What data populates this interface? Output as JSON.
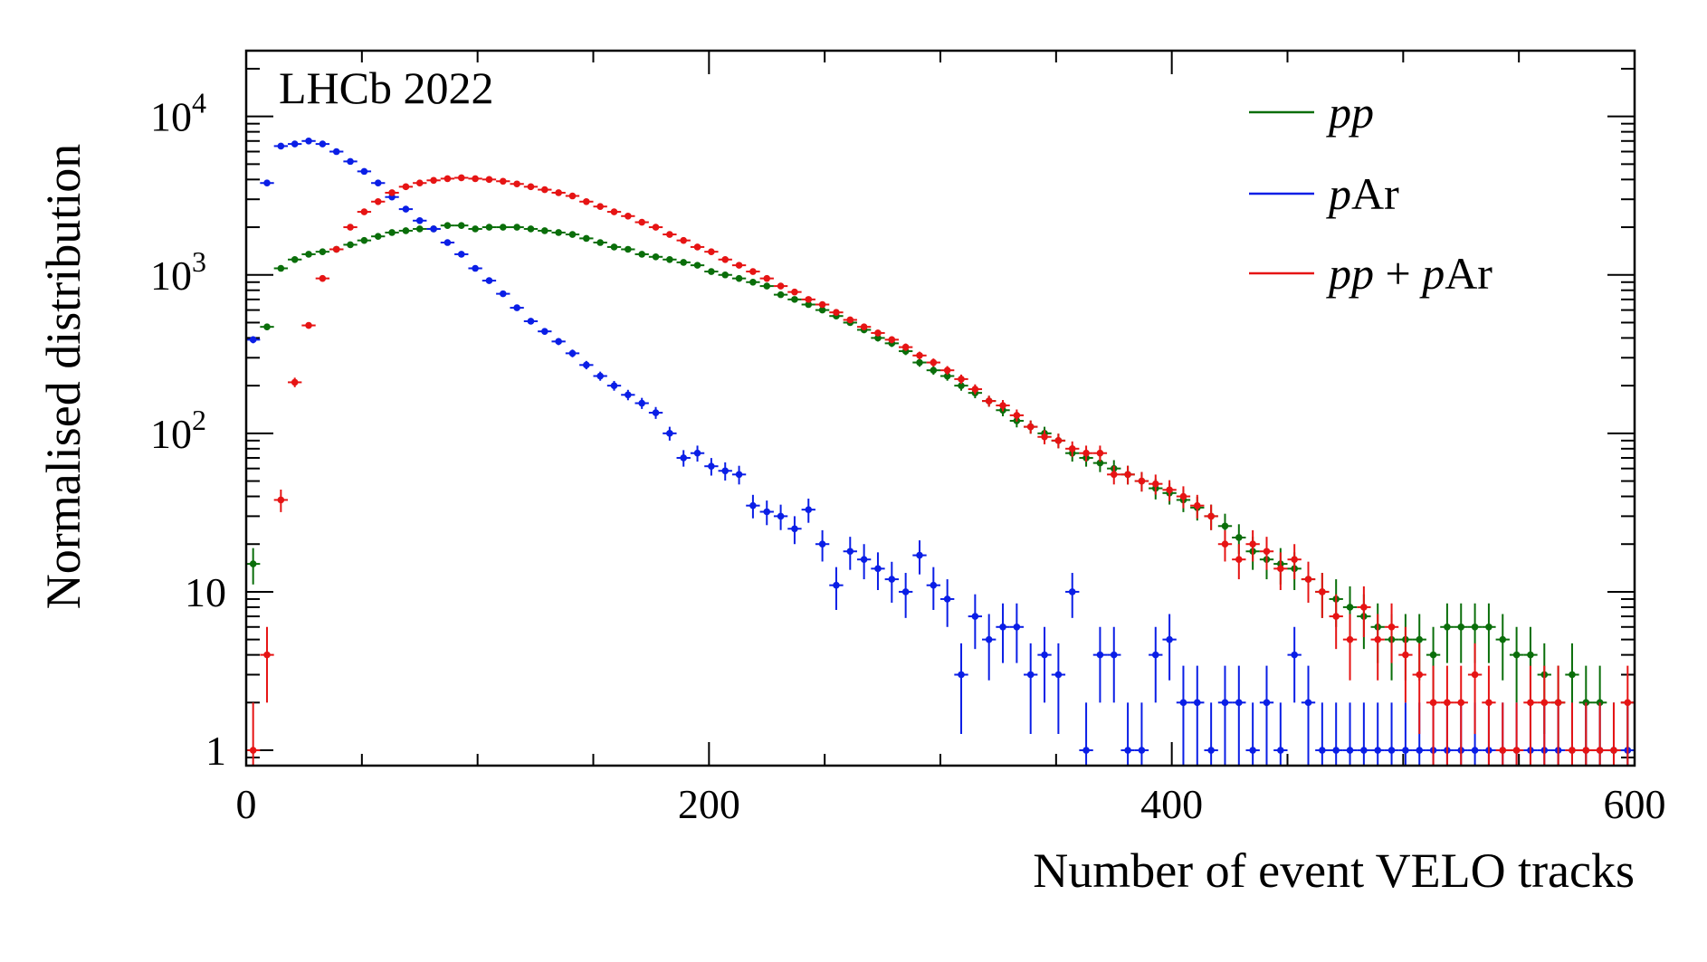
{
  "chart_data": {
    "type": "scatter",
    "title": "",
    "annotation": "LHCb 2022",
    "xlabel": "Number of event VELO tracks",
    "ylabel": "Normalised distribution",
    "xlim": [
      0,
      600
    ],
    "ylim": [
      0.8,
      26000
    ],
    "yscale": "log",
    "bin_width": 6,
    "x_ticks": [
      {
        "value": 0,
        "label": "0"
      },
      {
        "value": 200,
        "label": "200"
      },
      {
        "value": 400,
        "label": "400"
      },
      {
        "value": 600,
        "label": "600"
      }
    ],
    "y_ticks": [
      {
        "value": 1,
        "label": "1",
        "exp": ""
      },
      {
        "value": 10,
        "label": "10",
        "exp": ""
      },
      {
        "value": 100,
        "label": "10",
        "exp": "2"
      },
      {
        "value": 1000,
        "label": "10",
        "exp": "3"
      },
      {
        "value": 10000,
        "label": "10",
        "exp": "4"
      }
    ],
    "legend_position": "top-right",
    "series": [
      {
        "name": "pp",
        "legend": [
          {
            "text": "pp",
            "italic": true
          }
        ],
        "color": "#0a6e0a",
        "x": [
          3,
          9,
          15,
          21,
          27,
          33,
          39,
          45,
          51,
          57,
          63,
          69,
          75,
          81,
          87,
          93,
          99,
          105,
          111,
          117,
          123,
          129,
          135,
          141,
          147,
          153,
          159,
          165,
          171,
          177,
          183,
          189,
          195,
          201,
          207,
          213,
          219,
          225,
          231,
          237,
          243,
          249,
          255,
          261,
          267,
          273,
          279,
          285,
          291,
          297,
          303,
          309,
          315,
          321,
          327,
          333,
          339,
          345,
          351,
          357,
          363,
          369,
          375,
          381,
          387,
          393,
          399,
          405,
          411,
          417,
          423,
          429,
          435,
          441,
          447,
          453,
          459,
          465,
          471,
          477,
          483,
          489,
          495,
          501,
          507,
          513,
          519,
          525,
          531,
          537,
          543,
          549,
          555,
          561,
          567,
          573,
          579,
          585,
          591,
          597
        ],
        "y": [
          15,
          470,
          1100,
          1250,
          1350,
          1400,
          1450,
          1550,
          1650,
          1750,
          1850,
          1900,
          1950,
          1950,
          2050,
          2050,
          1950,
          2000,
          2000,
          2000,
          1950,
          1900,
          1850,
          1800,
          1700,
          1600,
          1500,
          1450,
          1350,
          1300,
          1250,
          1200,
          1150,
          1050,
          1000,
          950,
          900,
          850,
          750,
          700,
          650,
          600,
          550,
          500,
          450,
          400,
          370,
          330,
          280,
          250,
          230,
          200,
          180,
          160,
          140,
          120,
          110,
          100,
          90,
          75,
          70,
          65,
          60,
          55,
          50,
          45,
          42,
          38,
          34,
          30,
          26,
          22,
          18,
          16,
          15,
          14,
          12,
          10,
          9,
          8,
          7,
          6,
          5,
          5,
          5,
          4,
          6,
          6,
          6,
          6,
          5,
          4,
          4,
          3,
          2,
          3,
          2,
          2,
          1,
          1
        ]
      },
      {
        "name": "pAr",
        "legend": [
          {
            "text": "p",
            "italic": true
          },
          {
            "text": "Ar",
            "italic": false
          }
        ],
        "color": "#0a1ee6",
        "x": [
          3,
          9,
          15,
          21,
          27,
          33,
          39,
          45,
          51,
          57,
          63,
          69,
          75,
          81,
          87,
          93,
          99,
          105,
          111,
          117,
          123,
          129,
          135,
          141,
          147,
          153,
          159,
          165,
          171,
          177,
          183,
          189,
          195,
          201,
          207,
          213,
          219,
          225,
          231,
          237,
          243,
          249,
          255,
          261,
          267,
          273,
          279,
          285,
          291,
          297,
          303,
          309,
          315,
          321,
          327,
          333,
          339,
          345,
          351,
          357,
          363,
          369,
          375,
          381,
          387,
          393,
          399,
          405,
          411,
          417,
          423,
          429,
          435,
          441,
          447,
          453,
          459,
          465,
          471,
          477,
          483,
          489,
          495,
          501,
          507,
          513,
          519,
          525,
          531,
          537,
          543,
          549,
          555,
          561,
          567,
          573,
          579,
          585,
          591,
          597
        ],
        "y": [
          390,
          3800,
          6500,
          6700,
          7000,
          6700,
          6000,
          5200,
          4500,
          3800,
          3100,
          2600,
          2200,
          1950,
          1600,
          1350,
          1100,
          920,
          760,
          620,
          510,
          440,
          380,
          320,
          270,
          230,
          200,
          175,
          155,
          135,
          100,
          70,
          75,
          62,
          58,
          55,
          35,
          32,
          30,
          25,
          33,
          20,
          11,
          18,
          16,
          14,
          12,
          10,
          17,
          11,
          9,
          3,
          7,
          5,
          6,
          6,
          3,
          4,
          3,
          10,
          1,
          4,
          4,
          1,
          1,
          4,
          5,
          2,
          2,
          1,
          2,
          2,
          1,
          2,
          1,
          4,
          2,
          1,
          1,
          1,
          1,
          1,
          1,
          1,
          1,
          1,
          1,
          1,
          1,
          1,
          1,
          1,
          1,
          1,
          1,
          1,
          1,
          1,
          1,
          1
        ]
      },
      {
        "name": "pp + pAr",
        "legend": [
          {
            "text": "pp",
            "italic": true
          },
          {
            "text": " + ",
            "italic": false
          },
          {
            "text": "p",
            "italic": true
          },
          {
            "text": "Ar",
            "italic": false
          }
        ],
        "color": "#e61414",
        "x": [
          3,
          9,
          15,
          21,
          27,
          33,
          39,
          45,
          51,
          57,
          63,
          69,
          75,
          81,
          87,
          93,
          99,
          105,
          111,
          117,
          123,
          129,
          135,
          141,
          147,
          153,
          159,
          165,
          171,
          177,
          183,
          189,
          195,
          201,
          207,
          213,
          219,
          225,
          231,
          237,
          243,
          249,
          255,
          261,
          267,
          273,
          279,
          285,
          291,
          297,
          303,
          309,
          315,
          321,
          327,
          333,
          339,
          345,
          351,
          357,
          363,
          369,
          375,
          381,
          387,
          393,
          399,
          405,
          411,
          417,
          423,
          429,
          435,
          441,
          447,
          453,
          459,
          465,
          471,
          477,
          483,
          489,
          495,
          501,
          507,
          513,
          519,
          525,
          531,
          537,
          543,
          549,
          555,
          561,
          567,
          573,
          579,
          585,
          591,
          597
        ],
        "y": [
          1,
          4,
          38,
          210,
          480,
          950,
          1450,
          2000,
          2500,
          2900,
          3300,
          3600,
          3800,
          3950,
          4050,
          4100,
          4050,
          4000,
          3900,
          3750,
          3600,
          3450,
          3300,
          3150,
          2900,
          2700,
          2500,
          2350,
          2150,
          2000,
          1800,
          1650,
          1500,
          1400,
          1250,
          1150,
          1050,
          950,
          850,
          780,
          700,
          650,
          580,
          520,
          470,
          430,
          390,
          350,
          310,
          280,
          250,
          220,
          190,
          160,
          150,
          130,
          110,
          95,
          90,
          80,
          75,
          75,
          55,
          55,
          50,
          48,
          44,
          40,
          35,
          30,
          20,
          16,
          20,
          18,
          14,
          16,
          12,
          10,
          7,
          5,
          8,
          5,
          6,
          4,
          3,
          2,
          2,
          2,
          3,
          2,
          1,
          1,
          2,
          2,
          2,
          1,
          1,
          1,
          1,
          2
        ]
      }
    ]
  }
}
